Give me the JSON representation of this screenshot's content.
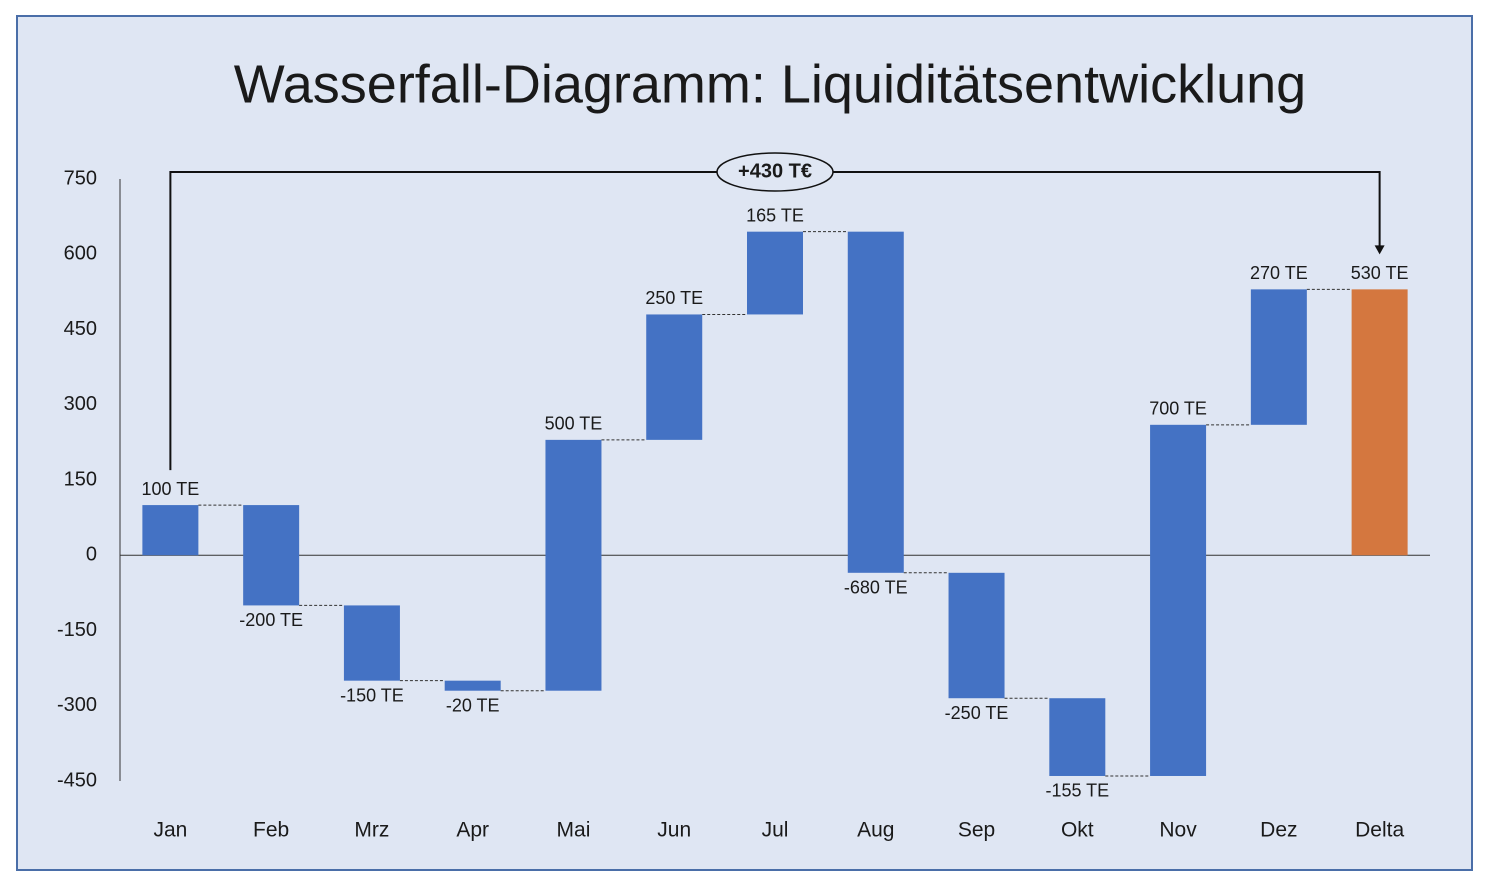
{
  "chart_data": {
    "type": "waterfall",
    "title": "Wasserfall-Diagramm: Liquiditätsentwicklung",
    "annotation": "+430 T€",
    "categories": [
      "Jan",
      "Feb",
      "Mrz",
      "Apr",
      "Mai",
      "Jun",
      "Jul",
      "Aug",
      "Sep",
      "Okt",
      "Nov",
      "Dez",
      "Delta"
    ],
    "values": [
      100,
      -200,
      -150,
      -20,
      500,
      250,
      165,
      -680,
      -250,
      -155,
      700,
      270,
      530
    ],
    "value_labels": [
      "100 TE",
      "-200 TE",
      "-150 TE",
      "-20 TE",
      "500 TE",
      "250 TE",
      "165 TE",
      "-680 TE",
      "-250 TE",
      "-155 TE",
      "700 TE",
      "270 TE",
      "530 TE"
    ],
    "is_total": [
      false,
      false,
      false,
      false,
      false,
      false,
      false,
      false,
      false,
      false,
      false,
      false,
      true
    ],
    "color": "#4472c4",
    "total_color": "#d4773f",
    "ylim": [
      -450,
      750
    ],
    "yticks": [
      -450,
      -300,
      -150,
      0,
      150,
      300,
      450,
      600,
      750
    ]
  }
}
